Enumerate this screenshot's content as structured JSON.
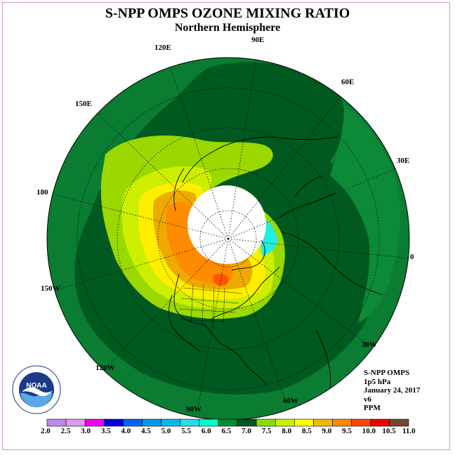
{
  "header": {
    "title": "S-NPP OMPS OZONE MIXING RATIO",
    "subtitle": "Northern Hemisphere"
  },
  "longitude_labels": [
    {
      "id": "90e",
      "text": "90E"
    },
    {
      "id": "60e",
      "text": "60E"
    },
    {
      "id": "30e",
      "text": "30E"
    },
    {
      "id": "0",
      "text": "0"
    },
    {
      "id": "30w",
      "text": "30W"
    },
    {
      "id": "60w",
      "text": "60W"
    },
    {
      "id": "90w",
      "text": "90W"
    },
    {
      "id": "120w",
      "text": "120W"
    },
    {
      "id": "150w",
      "text": "150W"
    },
    {
      "id": "180",
      "text": "180"
    },
    {
      "id": "150e",
      "text": "150E"
    },
    {
      "id": "120e",
      "text": "120E"
    }
  ],
  "info": {
    "instrument": "S-NPP OMPS",
    "level": "1p5 hPa",
    "date": "January 24, 2017",
    "version": "v6",
    "units": "PPM"
  },
  "colorbar": {
    "labels": [
      "2.0",
      "2.5",
      "3.0",
      "3.5",
      "4.0",
      "4.5",
      "5.0",
      "5.5",
      "6.0",
      "6.5",
      "7.0",
      "7.5",
      "8.0",
      "8.5",
      "9.0",
      "9.5",
      "10.0",
      "10.5",
      "11.0"
    ],
    "colors": [
      "#bb88ee",
      "#dd99ee",
      "#ee00ee",
      "#0000dd",
      "#0066ee",
      "#0099ee",
      "#00bbee",
      "#22ddee",
      "#00ffcc",
      "#008833",
      "#005522",
      "#88dd00",
      "#ccee00",
      "#ffff00",
      "#eebb00",
      "#ff8800",
      "#ff4400",
      "#ee0000",
      "#774433"
    ]
  },
  "colors": {
    "background_ozone": "#007a2e",
    "dark_band": "#005522",
    "light_green": "#99dd00",
    "yellow_green": "#ccee00",
    "yellow": "#ffee00",
    "orange": "#eeaa00",
    "dark_orange": "#ff8800",
    "red_orange": "#ff4400",
    "cyan": "#22eedd",
    "frame": "#cc99cc"
  },
  "logo": {
    "text": "NOAA",
    "ring_text": "NATIONAL OCEANIC AND ATMOSPHERIC ADMINISTRATION · U.S. DEPARTMENT OF COMMERCE"
  }
}
